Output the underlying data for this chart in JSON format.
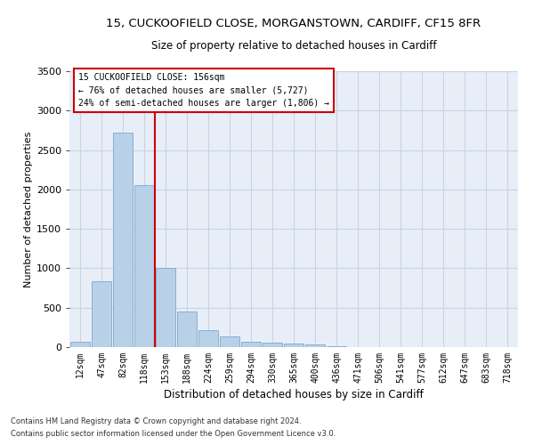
{
  "title_line1": "15, CUCKOOFIELD CLOSE, MORGANSTOWN, CARDIFF, CF15 8FR",
  "title_line2": "Size of property relative to detached houses in Cardiff",
  "xlabel": "Distribution of detached houses by size in Cardiff",
  "ylabel": "Number of detached properties",
  "bar_color": "#b8d0e8",
  "bar_edge_color": "#7aaacb",
  "grid_color": "#c8d4e4",
  "background_color": "#e8eef8",
  "annotation_box_color": "#cc0000",
  "vline_color": "#cc0000",
  "categories": [
    "12sqm",
    "47sqm",
    "82sqm",
    "118sqm",
    "153sqm",
    "188sqm",
    "224sqm",
    "259sqm",
    "294sqm",
    "330sqm",
    "365sqm",
    "400sqm",
    "436sqm",
    "471sqm",
    "506sqm",
    "541sqm",
    "577sqm",
    "612sqm",
    "647sqm",
    "683sqm",
    "718sqm"
  ],
  "values": [
    70,
    840,
    2720,
    2050,
    1000,
    450,
    210,
    130,
    70,
    55,
    50,
    35,
    10,
    5,
    3,
    2,
    1,
    1,
    0,
    0,
    0
  ],
  "vline_x": 3.5,
  "annotation_line1": "15 CUCKOOFIELD CLOSE: 156sqm",
  "annotation_line2": "← 76% of detached houses are smaller (5,727)",
  "annotation_line3": "24% of semi-detached houses are larger (1,806) →",
  "footnote1": "Contains HM Land Registry data © Crown copyright and database right 2024.",
  "footnote2": "Contains public sector information licensed under the Open Government Licence v3.0.",
  "ylim": [
    0,
    3500
  ],
  "yticks": [
    0,
    500,
    1000,
    1500,
    2000,
    2500,
    3000,
    3500
  ]
}
